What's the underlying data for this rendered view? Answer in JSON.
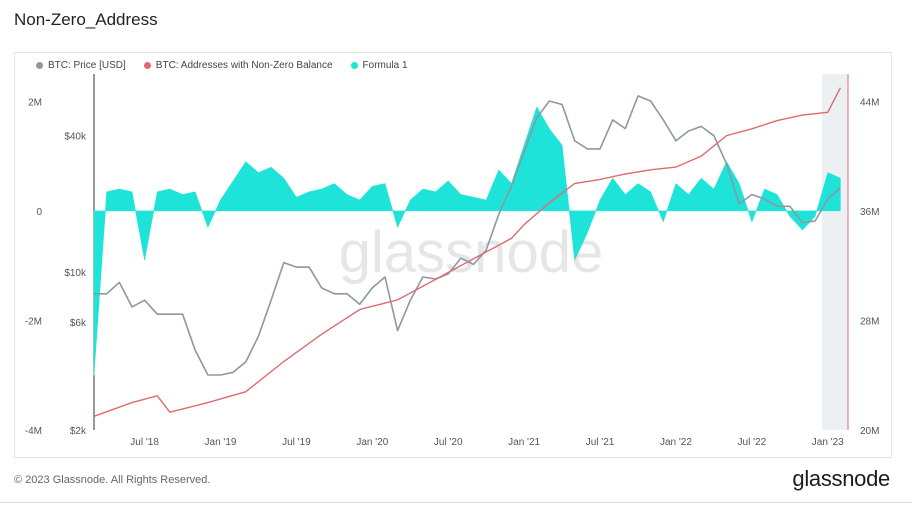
{
  "title": "Non-Zero_Address",
  "footer": {
    "copyright": "© 2023 Glassnode. All Rights Reserved.",
    "logo": "glassnode",
    "watermark": "glassnode"
  },
  "colors": {
    "price": "#8c98a4",
    "addresses": "#e06a72",
    "formula": "#1ee3d9"
  },
  "chart_data": {
    "type": "line",
    "title": "Non-Zero_Address",
    "legend_placement": "top-left",
    "grid": false,
    "series": [
      {
        "name": "BTC: Price [USD]",
        "axis": "left-price",
        "scale": "log",
        "style": "line",
        "x": [
          "2018-03",
          "2018-04",
          "2018-05",
          "2018-06",
          "2018-07",
          "2018-08",
          "2018-09",
          "2018-10",
          "2018-11",
          "2018-12",
          "2019-01",
          "2019-02",
          "2019-03",
          "2019-04",
          "2019-05",
          "2019-06",
          "2019-07",
          "2019-08",
          "2019-09",
          "2019-10",
          "2019-11",
          "2019-12",
          "2020-01",
          "2020-02",
          "2020-03",
          "2020-04",
          "2020-05",
          "2020-06",
          "2020-07",
          "2020-08",
          "2020-09",
          "2020-10",
          "2020-11",
          "2020-12",
          "2021-01",
          "2021-02",
          "2021-03",
          "2021-04",
          "2021-05",
          "2021-06",
          "2021-07",
          "2021-08",
          "2021-09",
          "2021-10",
          "2021-11",
          "2021-12",
          "2022-01",
          "2022-02",
          "2022-03",
          "2022-04",
          "2022-05",
          "2022-06",
          "2022-07",
          "2022-08",
          "2022-09",
          "2022-10",
          "2022-11",
          "2022-12",
          "2023-01",
          "2023-02"
        ],
        "values": [
          8000,
          8000,
          9000,
          7000,
          7500,
          6500,
          6500,
          6500,
          4500,
          3500,
          3500,
          3600,
          4000,
          5200,
          7500,
          11000,
          10500,
          10500,
          8500,
          8000,
          8000,
          7200,
          8500,
          9500,
          5500,
          7500,
          9500,
          9300,
          9800,
          11500,
          10800,
          12500,
          18000,
          24000,
          34000,
          48000,
          57000,
          55000,
          38000,
          35000,
          35000,
          47000,
          43000,
          60000,
          57000,
          47000,
          38000,
          42000,
          44000,
          40000,
          30000,
          20000,
          22000,
          21000,
          19500,
          19500,
          16500,
          16800,
          21000,
          23500
        ]
      },
      {
        "name": "BTC: Addresses with Non-Zero Balance",
        "axis": "right",
        "style": "line",
        "x": [
          "2018-03",
          "2018-06",
          "2018-08",
          "2018-09",
          "2018-12",
          "2019-03",
          "2019-06",
          "2019-09",
          "2019-12",
          "2020-03",
          "2020-06",
          "2020-09",
          "2020-12",
          "2021-01",
          "2021-03",
          "2021-05",
          "2021-07",
          "2021-09",
          "2021-11",
          "2022-01",
          "2022-03",
          "2022-05",
          "2022-07",
          "2022-09",
          "2022-11",
          "2023-01",
          "2023-02"
        ],
        "values": [
          21000000,
          22000000,
          22500000,
          21300000,
          22000000,
          22800000,
          25000000,
          27000000,
          28800000,
          29500000,
          31000000,
          32500000,
          34000000,
          35000000,
          36600000,
          38000000,
          38300000,
          38700000,
          39000000,
          39200000,
          40000000,
          41500000,
          42000000,
          42600000,
          43000000,
          43200000,
          45000000
        ]
      },
      {
        "name": "Formula 1",
        "axis": "left",
        "style": "area",
        "x": [
          "2018-03",
          "2018-04",
          "2018-05",
          "2018-06",
          "2018-07",
          "2018-08",
          "2018-09",
          "2018-10",
          "2018-11",
          "2018-12",
          "2019-01",
          "2019-02",
          "2019-03",
          "2019-04",
          "2019-05",
          "2019-06",
          "2019-07",
          "2019-08",
          "2019-09",
          "2019-10",
          "2019-11",
          "2019-12",
          "2020-01",
          "2020-02",
          "2020-03",
          "2020-04",
          "2020-05",
          "2020-06",
          "2020-07",
          "2020-08",
          "2020-09",
          "2020-10",
          "2020-11",
          "2020-12",
          "2021-01",
          "2021-02",
          "2021-03",
          "2021-04",
          "2021-05",
          "2021-06",
          "2021-07",
          "2021-08",
          "2021-09",
          "2021-10",
          "2021-11",
          "2021-12",
          "2022-01",
          "2022-02",
          "2022-03",
          "2022-04",
          "2022-05",
          "2022-06",
          "2022-07",
          "2022-08",
          "2022-09",
          "2022-10",
          "2022-11",
          "2022-12",
          "2023-01",
          "2023-02"
        ],
        "values": [
          -3000000,
          350000,
          400000,
          350000,
          -900000,
          350000,
          400000,
          300000,
          350000,
          -300000,
          200000,
          550000,
          900000,
          700000,
          800000,
          600000,
          250000,
          350000,
          400000,
          500000,
          300000,
          200000,
          450000,
          500000,
          -300000,
          200000,
          400000,
          350000,
          550000,
          300000,
          250000,
          200000,
          750000,
          500000,
          1200000,
          1900000,
          1500000,
          1200000,
          -900000,
          -400000,
          200000,
          600000,
          300000,
          500000,
          350000,
          -200000,
          500000,
          300000,
          600000,
          400000,
          900000,
          500000,
          -200000,
          400000,
          300000,
          -100000,
          -350000,
          -100000,
          700000,
          600000
        ]
      }
    ],
    "axes": {
      "x": {
        "ticks": [
          "Jul '18",
          "Jan '19",
          "Jul '19",
          "Jan '20",
          "Jul '20",
          "Jan '21",
          "Jul '21",
          "Jan '22",
          "Jul '22",
          "Jan '23"
        ],
        "range": [
          "2018-03",
          "2023-02"
        ]
      },
      "y_left": {
        "ticks": [
          "2M",
          "0",
          "-2M",
          "-4M"
        ],
        "range": [
          -4000000,
          2500000
        ]
      },
      "y_left_price": {
        "ticks": [
          "$40k",
          "$10k",
          "$6k",
          "$2k"
        ],
        "scale": "log"
      },
      "y_right": {
        "ticks": [
          "44M",
          "36M",
          "28M",
          "20M"
        ],
        "range": [
          20000000,
          46000000
        ]
      }
    }
  }
}
